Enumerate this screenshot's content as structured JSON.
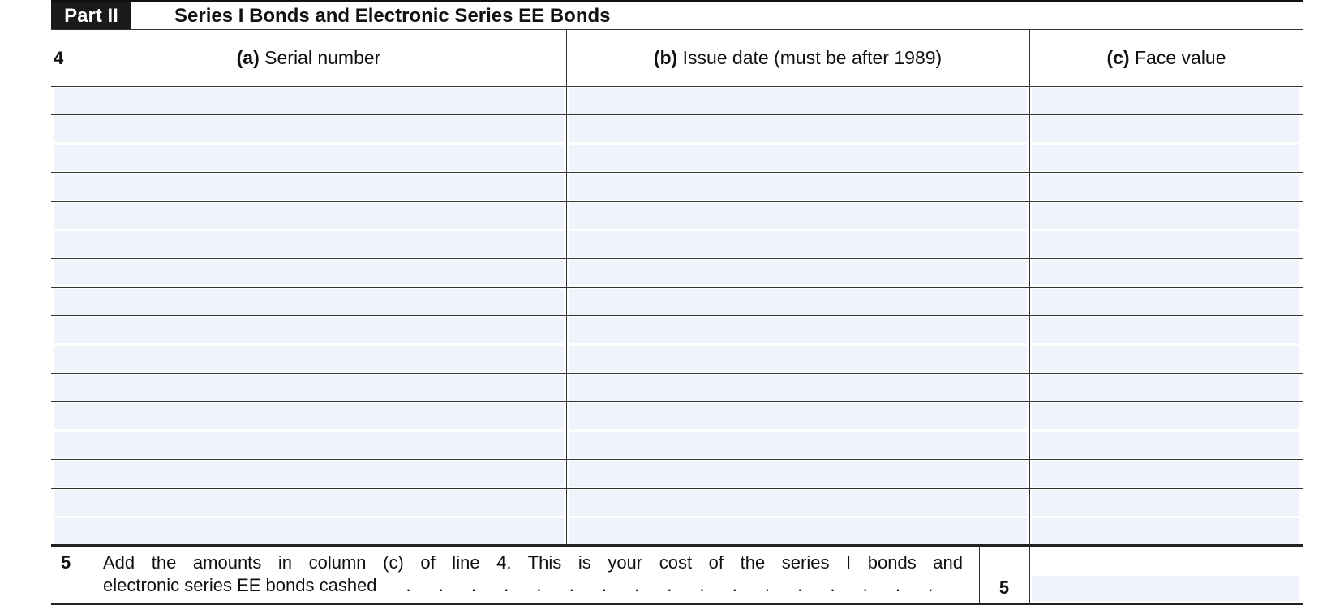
{
  "part": {
    "label": "Part II",
    "title": "Series I Bonds and Electronic Series EE Bonds"
  },
  "line4": {
    "number": "4",
    "columns": [
      {
        "letter": "(a)",
        "label": "Serial number"
      },
      {
        "letter": "(b)",
        "label": "Issue date (must be after 1989)"
      },
      {
        "letter": "(c)",
        "label": "Face value"
      }
    ],
    "row_count": 16
  },
  "line5": {
    "number": "5",
    "text_line1": "Add the amounts in column (c) of line 4. This is your cost of the series I bonds and",
    "text_line2": "electronic series EE bonds cashed",
    "dots": ". . . . . . . . . . . . . . . . .",
    "box_label": "5",
    "value": ""
  },
  "colors": {
    "field_fill": "#eef3fc",
    "rule": "#333333"
  }
}
